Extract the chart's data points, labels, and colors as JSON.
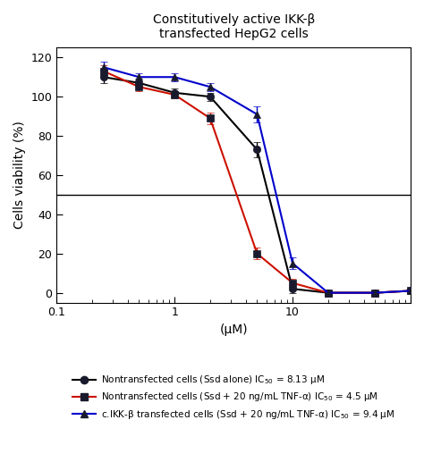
{
  "title_line1": "Constitutively active IKK-β",
  "title_line2": "transfected HepG2 cells",
  "xlabel": "(μM)",
  "ylabel": "Cells viability (%)",
  "xlim": [
    0.1,
    100
  ],
  "ylim": [
    -5,
    125
  ],
  "yticks": [
    0,
    20,
    40,
    60,
    80,
    100,
    120
  ],
  "hline_y": 50,
  "series1": {
    "label": "Nontransfected cells (Ssd alone) IC$_{50}$ = 8.13 μM",
    "line_color": "black",
    "marker_color": "#1a1a2e",
    "marker": "o",
    "x": [
      0.25,
      0.5,
      1.0,
      2.0,
      5.0,
      10.0,
      20.0,
      50.0,
      100.0
    ],
    "y": [
      110,
      107,
      102,
      100,
      73,
      2,
      0,
      0,
      1
    ],
    "yerr": [
      3,
      2,
      2,
      2,
      4,
      2,
      1,
      1,
      1
    ]
  },
  "series2": {
    "label": "Nontransfected cells (Ssd + 20 ng/mL TNF-α) IC$_{50}$ = 4.5 μM",
    "line_color": "#cc1100",
    "marker_color": "#1a1a2e",
    "marker": "s",
    "x": [
      0.25,
      0.5,
      1.0,
      2.0,
      5.0,
      10.0,
      20.0,
      50.0,
      100.0
    ],
    "y": [
      113,
      105,
      101,
      89,
      20,
      5,
      0,
      0,
      1
    ],
    "yerr": [
      3,
      2,
      2,
      3,
      3,
      2,
      1,
      1,
      1
    ]
  },
  "series3": {
    "label": "c.IKK-β transfected cells (Ssd + 20 ng/mL TNF-α) IC$_{50}$ = 9.4 μM",
    "line_color": "#0000cc",
    "marker_color": "#1a1a2e",
    "marker": "^",
    "x": [
      0.25,
      0.5,
      1.0,
      2.0,
      5.0,
      10.0,
      20.0,
      50.0,
      100.0
    ],
    "y": [
      115,
      110,
      110,
      105,
      91,
      15,
      0,
      0,
      1
    ],
    "yerr": [
      3,
      2,
      2,
      2,
      4,
      3,
      1,
      1,
      1
    ]
  },
  "legend_entries": [
    "Nontransfected cells (Ssd alone) IC$_{50}$ = 8.13 μM",
    "Nontransfected cells (Ssd + 20 ng/mL TNF-α) IC$_{50}$ = 4.5 μM",
    "c.IKK-β transfected cells (Ssd + 20 ng/mL TNF-α) IC$_{50}$ = 9.4 μM"
  ]
}
